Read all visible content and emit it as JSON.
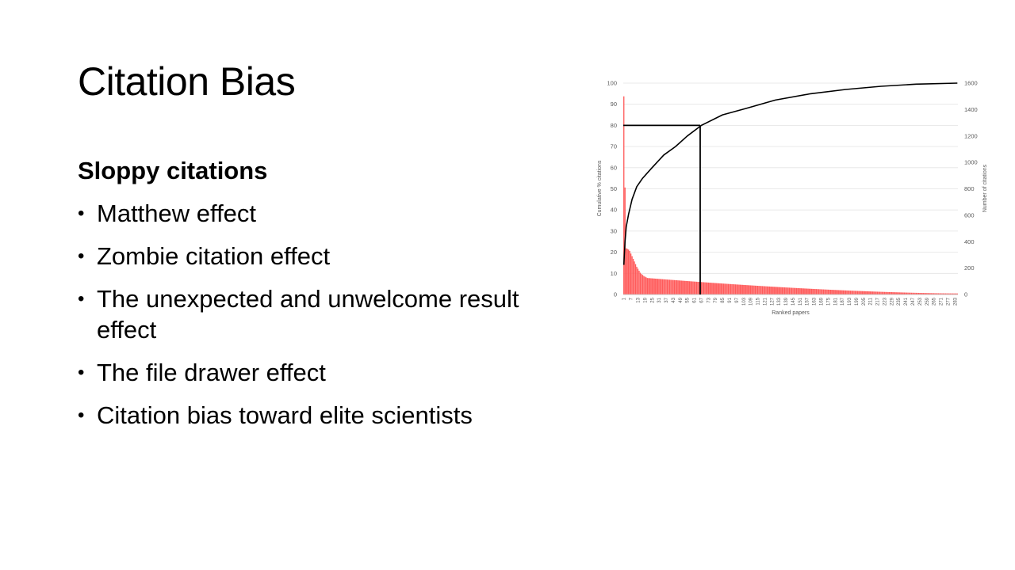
{
  "slide": {
    "title": "Citation Bias",
    "subheading": "Sloppy citations",
    "bullets": [
      "Matthew effect",
      "Zombie citation effect",
      "The unexpected and unwelcome result effect",
      "The file drawer effect",
      "Citation bias toward elite scientists"
    ]
  },
  "chart_data": {
    "type": "bar",
    "title": "",
    "xlabel": "Ranked papers",
    "ylabel_left": "Cumulative % citations",
    "ylabel_right": "Number of citations",
    "xlim": [
      1,
      285
    ],
    "ylim_left": [
      0,
      100
    ],
    "ylim_right": [
      0,
      1600
    ],
    "yticks_left": [
      0,
      10,
      20,
      30,
      40,
      50,
      60,
      70,
      80,
      90,
      100
    ],
    "yticks_right": [
      0,
      200,
      400,
      600,
      800,
      1000,
      1200,
      1400,
      1600
    ],
    "xtick_labels": [
      "1",
      "7",
      "13",
      "19",
      "25",
      "31",
      "37",
      "43",
      "49",
      "55",
      "61",
      "67",
      "73",
      "79",
      "85",
      "91",
      "97",
      "103",
      "109",
      "115",
      "121",
      "127",
      "133",
      "139",
      "145",
      "151",
      "157",
      "163",
      "169",
      "175",
      "181",
      "187",
      "193",
      "199",
      "205",
      "211",
      "217",
      "223",
      "229",
      "235",
      "241",
      "247",
      "253",
      "259",
      "265",
      "271",
      "277",
      "283"
    ],
    "grid": true,
    "bar_series": {
      "name": "Number of citations",
      "axis": "right",
      "color": "#ff5b5b",
      "values": [
        1500,
        810,
        350,
        345,
        340,
        330,
        310,
        290,
        270,
        250,
        230,
        210,
        195,
        180,
        165,
        155,
        148,
        140,
        135,
        130
      ]
    },
    "bar_decay": {
      "from_rank": 21,
      "start_value": 125,
      "end_value": 8,
      "exponent": 1.6
    },
    "line_series": {
      "name": "Cumulative % citations",
      "axis": "left",
      "color": "#000000",
      "points": [
        [
          1,
          14
        ],
        [
          2,
          25
        ],
        [
          3,
          32
        ],
        [
          5,
          38
        ],
        [
          8,
          45
        ],
        [
          12,
          51
        ],
        [
          17,
          55
        ],
        [
          25,
          60
        ],
        [
          35,
          66
        ],
        [
          45,
          70
        ],
        [
          55,
          75
        ],
        [
          67,
          80
        ],
        [
          85,
          85
        ],
        [
          105,
          88
        ],
        [
          130,
          92
        ],
        [
          160,
          95
        ],
        [
          190,
          97
        ],
        [
          220,
          98.5
        ],
        [
          250,
          99.5
        ],
        [
          285,
          100
        ]
      ]
    },
    "reference_lines": {
      "y": 80,
      "x": 66,
      "color": "#000000"
    }
  }
}
